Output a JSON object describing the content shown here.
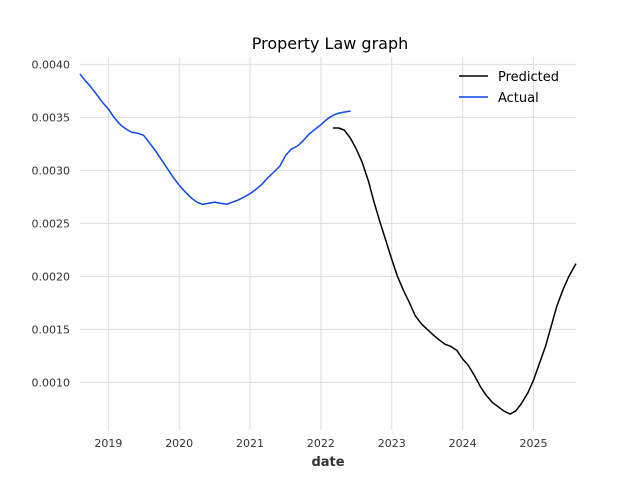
{
  "chart_data": {
    "type": "line",
    "title": "Property Law graph",
    "xlabel": "date",
    "ylabel": "",
    "xlim": [
      2018.6,
      2025.6
    ],
    "ylim": [
      0.00055,
      0.00407
    ],
    "x_ticks": [
      2019,
      2020,
      2021,
      2022,
      2023,
      2024,
      2025
    ],
    "x_tick_labels": [
      "2019",
      "2020",
      "2021",
      "2022",
      "2023",
      "2024",
      "2025"
    ],
    "y_ticks": [
      0.001,
      0.0015,
      0.002,
      0.0025,
      0.003,
      0.0035,
      0.004
    ],
    "y_tick_labels": [
      "0.0010",
      "0.0015",
      "0.0020",
      "0.0025",
      "0.0030",
      "0.0035",
      "0.0040"
    ],
    "grid": true,
    "legend_position": "top-right",
    "series": [
      {
        "name": "Predicted",
        "color": "#000000",
        "points": [
          [
            2022.17,
            0.0034
          ],
          [
            2022.25,
            0.0034
          ],
          [
            2022.33,
            0.00338
          ],
          [
            2022.42,
            0.0033
          ],
          [
            2022.5,
            0.0032
          ],
          [
            2022.58,
            0.00308
          ],
          [
            2022.67,
            0.0029
          ],
          [
            2022.75,
            0.0027
          ],
          [
            2022.83,
            0.00252
          ],
          [
            2022.92,
            0.00233
          ],
          [
            2023.0,
            0.00216
          ],
          [
            2023.08,
            0.002
          ],
          [
            2023.17,
            0.00186
          ],
          [
            2023.25,
            0.00175
          ],
          [
            2023.33,
            0.00163
          ],
          [
            2023.42,
            0.00155
          ],
          [
            2023.5,
            0.0015
          ],
          [
            2023.58,
            0.00145
          ],
          [
            2023.67,
            0.0014
          ],
          [
            2023.75,
            0.00136
          ],
          [
            2023.83,
            0.00134
          ],
          [
            2023.92,
            0.0013
          ],
          [
            2024.0,
            0.00122
          ],
          [
            2024.08,
            0.00116
          ],
          [
            2024.17,
            0.00106
          ],
          [
            2024.25,
            0.00096
          ],
          [
            2024.33,
            0.00088
          ],
          [
            2024.42,
            0.00081
          ],
          [
            2024.5,
            0.00077
          ],
          [
            2024.58,
            0.00073
          ],
          [
            2024.67,
            0.0007
          ],
          [
            2024.75,
            0.00073
          ],
          [
            2024.83,
            0.0008
          ],
          [
            2024.92,
            0.0009
          ],
          [
            2025.0,
            0.00102
          ],
          [
            2025.08,
            0.00117
          ],
          [
            2025.17,
            0.00134
          ],
          [
            2025.25,
            0.00153
          ],
          [
            2025.33,
            0.00172
          ],
          [
            2025.42,
            0.00188
          ],
          [
            2025.5,
            0.002
          ],
          [
            2025.6,
            0.00212
          ]
        ]
      },
      {
        "name": "Actual",
        "color": "#0a47f0",
        "points": [
          [
            2018.6,
            0.00391
          ],
          [
            2018.67,
            0.00385
          ],
          [
            2018.75,
            0.00379
          ],
          [
            2018.83,
            0.00372
          ],
          [
            2018.92,
            0.00364
          ],
          [
            2019.0,
            0.00358
          ],
          [
            2019.08,
            0.0035
          ],
          [
            2019.17,
            0.00343
          ],
          [
            2019.25,
            0.00339
          ],
          [
            2019.33,
            0.00336
          ],
          [
            2019.42,
            0.00335
          ],
          [
            2019.5,
            0.00333
          ],
          [
            2019.58,
            0.00326
          ],
          [
            2019.67,
            0.00318
          ],
          [
            2019.75,
            0.0031
          ],
          [
            2019.83,
            0.00302
          ],
          [
            2019.92,
            0.00293
          ],
          [
            2020.0,
            0.00286
          ],
          [
            2020.08,
            0.0028
          ],
          [
            2020.17,
            0.00274
          ],
          [
            2020.25,
            0.0027
          ],
          [
            2020.33,
            0.00268
          ],
          [
            2020.42,
            0.00269
          ],
          [
            2020.5,
            0.0027
          ],
          [
            2020.58,
            0.00269
          ],
          [
            2020.67,
            0.00268
          ],
          [
            2020.75,
            0.0027
          ],
          [
            2020.83,
            0.00272
          ],
          [
            2020.92,
            0.00275
          ],
          [
            2021.0,
            0.00278
          ],
          [
            2021.08,
            0.00282
          ],
          [
            2021.17,
            0.00287
          ],
          [
            2021.25,
            0.00293
          ],
          [
            2021.33,
            0.00298
          ],
          [
            2021.42,
            0.00304
          ],
          [
            2021.5,
            0.00314
          ],
          [
            2021.58,
            0.0032
          ],
          [
            2021.67,
            0.00323
          ],
          [
            2021.75,
            0.00328
          ],
          [
            2021.83,
            0.00334
          ],
          [
            2021.92,
            0.00339
          ],
          [
            2022.0,
            0.00343
          ],
          [
            2022.08,
            0.00348
          ],
          [
            2022.17,
            0.00352
          ],
          [
            2022.25,
            0.00354
          ],
          [
            2022.33,
            0.00355
          ],
          [
            2022.42,
            0.00356
          ]
        ]
      }
    ]
  }
}
